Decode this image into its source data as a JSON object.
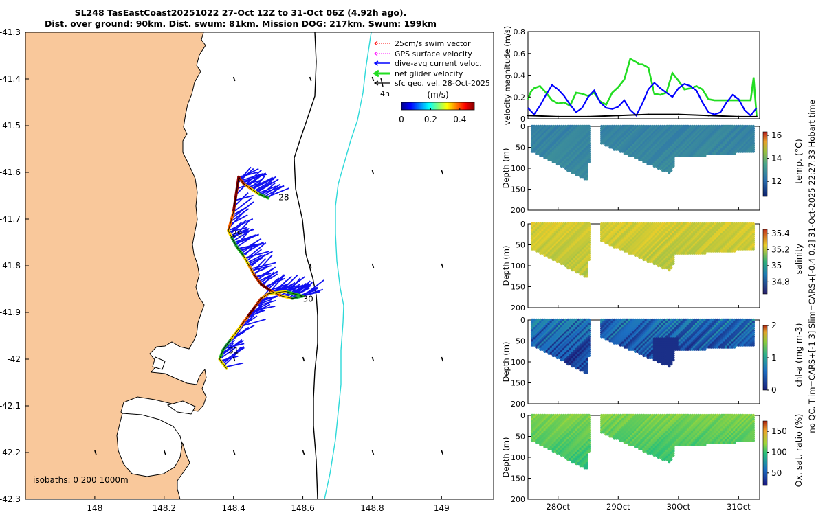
{
  "header": {
    "title_line1": "SL248 TasEastCoast20251022 27-Oct 12Z to 31-Oct 06Z (4.92h ago).",
    "title_line2": "Dist. over ground: 90km. Dist. swum: 81km. Mission DOG: 217km. Swum: 199km"
  },
  "colors": {
    "land": "#f9c89b",
    "isobath_200": "#000000",
    "isobath_1000": "#2ed9d9",
    "swim": "#ff0000",
    "gps": "#ff00ff",
    "current": "#0000ff",
    "net": "#22dd22",
    "geo": "#000000"
  },
  "chart_data": [
    {
      "type": "scatter",
      "name": "map",
      "title": "glider track map",
      "xlim": [
        147.8,
        149.15
      ],
      "ylim": [
        -42.3,
        -41.3
      ],
      "xticks": [
        "148",
        "148.2",
        "148.4",
        "148.6",
        "148.8",
        "149"
      ],
      "yticks": [
        "-41.3",
        "-41.4",
        "-41.5",
        "-41.6",
        "-41.7",
        "-41.8",
        "-41.9",
        "-42",
        "-42.1",
        "-42.2",
        "-42.3"
      ],
      "legend": [
        {
          "label": "25cm/s swim vector",
          "color": "#ff0000"
        },
        {
          "label": "GPS surface velocity",
          "color": "#ff00ff"
        },
        {
          "label": "dive-avg current veloc.",
          "color": "#0000ff"
        },
        {
          "label": "net glider velocity",
          "color": "#22dd22"
        },
        {
          "label": "sfc geo. vel. 28-Oct-2025",
          "color": "#000000"
        }
      ],
      "scale_label": "4h",
      "colorbar": {
        "label": "(m/s)",
        "ticks": [
          "0",
          "0.2",
          "0.4"
        ],
        "range": [
          0,
          0.5
        ]
      },
      "isobaths_label": "isobaths: 0   200  1000m",
      "day_labels": [
        {
          "text": "28",
          "lon": 148.53,
          "lat": -41.652
        },
        {
          "text": "29",
          "lon": 148.395,
          "lat": -41.73
        },
        {
          "text": "30",
          "lon": 148.6,
          "lat": -41.87
        },
        {
          "text": "31",
          "lon": 148.385,
          "lat": -41.98
        }
      ],
      "track": [
        [
          148.5,
          -41.655
        ],
        [
          148.47,
          -41.645
        ],
        [
          148.45,
          -41.635
        ],
        [
          148.43,
          -41.625
        ],
        [
          148.415,
          -41.61
        ],
        [
          148.4,
          -41.685
        ],
        [
          148.385,
          -41.725
        ],
        [
          148.395,
          -41.74
        ],
        [
          148.41,
          -41.76
        ],
        [
          148.43,
          -41.78
        ],
        [
          148.445,
          -41.8
        ],
        [
          148.46,
          -41.82
        ],
        [
          148.48,
          -41.84
        ],
        [
          148.51,
          -41.855
        ],
        [
          148.54,
          -41.865
        ],
        [
          148.57,
          -41.87
        ],
        [
          148.6,
          -41.865
        ],
        [
          148.55,
          -41.855
        ],
        [
          148.5,
          -41.86
        ],
        [
          148.48,
          -41.87
        ],
        [
          148.46,
          -41.89
        ],
        [
          148.44,
          -41.91
        ],
        [
          148.42,
          -41.93
        ],
        [
          148.39,
          -41.96
        ],
        [
          148.37,
          -41.98
        ],
        [
          148.36,
          -42.0
        ],
        [
          148.38,
          -42.02
        ]
      ],
      "geo_arrows": [
        [
          148.8,
          -41.4
        ],
        [
          148.4,
          -41.4
        ],
        [
          148.62,
          -41.4
        ],
        [
          148.8,
          -41.6
        ],
        [
          149.0,
          -41.6
        ],
        [
          149.0,
          -41.8
        ],
        [
          148.8,
          -41.8
        ],
        [
          148.62,
          -41.8
        ],
        [
          149.0,
          -42.0
        ],
        [
          148.8,
          -42.0
        ],
        [
          148.6,
          -42.0
        ],
        [
          148.4,
          -42.0
        ],
        [
          148.0,
          -42.2
        ],
        [
          148.2,
          -42.2
        ],
        [
          148.4,
          -42.2
        ],
        [
          148.6,
          -42.2
        ],
        [
          148.8,
          -42.2
        ],
        [
          149.0,
          -42.2
        ]
      ]
    },
    {
      "type": "line",
      "name": "velocity",
      "ylabel": "velocity magnitude (m/s)",
      "ylim": [
        0,
        0.8
      ],
      "yticks": [
        "0",
        "0.2",
        "0.4",
        "0.6",
        "0.8"
      ],
      "xlim": [
        27.5,
        31.35
      ],
      "series": [
        {
          "name": "net glider velocity",
          "color": "#22dd22",
          "x": [
            27.5,
            27.55,
            27.6,
            27.7,
            27.8,
            27.9,
            28.0,
            28.1,
            28.2,
            28.3,
            28.4,
            28.5,
            28.6,
            28.7,
            28.8,
            28.9,
            29.0,
            29.1,
            29.2,
            29.3,
            29.35,
            29.4,
            29.5,
            29.6,
            29.7,
            29.8,
            29.9,
            30.0,
            30.1,
            30.2,
            30.3,
            30.4,
            30.5,
            30.6,
            30.7,
            30.8,
            30.9,
            31.0,
            31.1,
            31.2,
            31.25,
            31.3
          ],
          "values": [
            0.18,
            0.25,
            0.28,
            0.3,
            0.24,
            0.17,
            0.14,
            0.15,
            0.12,
            0.24,
            0.23,
            0.21,
            0.24,
            0.16,
            0.13,
            0.24,
            0.29,
            0.36,
            0.55,
            0.52,
            0.5,
            0.5,
            0.47,
            0.23,
            0.22,
            0.24,
            0.42,
            0.35,
            0.27,
            0.28,
            0.3,
            0.27,
            0.18,
            0.17,
            0.17,
            0.17,
            0.17,
            0.17,
            0.17,
            0.17,
            0.38,
            0.02
          ]
        },
        {
          "name": "dive-avg current",
          "color": "#0000ff",
          "x": [
            27.5,
            27.6,
            27.7,
            27.8,
            27.9,
            28.0,
            28.1,
            28.2,
            28.3,
            28.4,
            28.5,
            28.6,
            28.7,
            28.8,
            28.9,
            29.0,
            29.1,
            29.2,
            29.3,
            29.4,
            29.5,
            29.6,
            29.7,
            29.8,
            29.9,
            30.0,
            30.1,
            30.2,
            30.3,
            30.4,
            30.5,
            30.6,
            30.7,
            30.8,
            30.9,
            31.0,
            31.1,
            31.2,
            31.3
          ],
          "values": [
            0.1,
            0.04,
            0.12,
            0.22,
            0.31,
            0.27,
            0.21,
            0.13,
            0.06,
            0.1,
            0.2,
            0.26,
            0.15,
            0.1,
            0.09,
            0.11,
            0.17,
            0.08,
            0.03,
            0.14,
            0.27,
            0.33,
            0.28,
            0.24,
            0.2,
            0.28,
            0.32,
            0.3,
            0.26,
            0.15,
            0.06,
            0.04,
            0.06,
            0.15,
            0.22,
            0.18,
            0.08,
            0.03,
            0.1
          ]
        },
        {
          "name": "sfc geo",
          "color": "#000000",
          "x": [
            27.5,
            28.0,
            28.5,
            29.0,
            29.5,
            30.0,
            30.5,
            31.0,
            31.3
          ],
          "values": [
            0.03,
            0.02,
            0.02,
            0.03,
            0.04,
            0.04,
            0.03,
            0.02,
            0.02
          ]
        }
      ]
    },
    {
      "type": "scatter",
      "name": "temperature",
      "ylabel": "Depth (m)",
      "colorbar_label": "temp. (°C)",
      "colorbar_ticks": [
        "12",
        "14",
        "16"
      ],
      "range": [
        10.7,
        16.3
      ],
      "ylim": [
        200,
        0
      ],
      "yticks": [
        "0",
        "50",
        "100",
        "150",
        "200"
      ],
      "surface": 12.6,
      "deep": 12.8
    },
    {
      "type": "scatter",
      "name": "salinity",
      "ylabel": "Depth (m)",
      "colorbar_label": "salinity",
      "colorbar_ticks": [
        "34.8",
        "35",
        "35.2",
        "35.4"
      ],
      "range": [
        34.65,
        35.45
      ],
      "ylim": [
        200,
        0
      ],
      "yticks": [
        "0",
        "50",
        "100",
        "150",
        "200"
      ],
      "surface": 35.23,
      "deep": 35.2
    },
    {
      "type": "scatter",
      "name": "chla",
      "ylabel": "Depth (m)",
      "colorbar_label": "chl-a (mg m-3)",
      "colorbar_ticks": [
        "0",
        "1",
        "2"
      ],
      "range": [
        0,
        2
      ],
      "ylim": [
        200,
        0
      ],
      "yticks": [
        "0",
        "50",
        "100",
        "150",
        "200"
      ],
      "surface": 0.6,
      "deep": 0.25
    },
    {
      "type": "scatter",
      "name": "oxygen",
      "ylabel": "Depth (m)",
      "colorbar_label": "Ox. sat. ratio (%)",
      "colorbar_ticks": [
        "50",
        "100",
        "150"
      ],
      "range": [
        20,
        175
      ],
      "ylim": [
        200,
        0
      ],
      "yticks": [
        "0",
        "50",
        "100",
        "150",
        "200"
      ],
      "surface": 115,
      "deep": 98
    }
  ],
  "time_axis": {
    "ticks": [
      "28Oct",
      "29Oct",
      "30Oct",
      "31Oct"
    ],
    "tick_values": [
      28,
      29,
      30,
      31
    ],
    "xlim": [
      27.5,
      31.35
    ]
  },
  "side_caption": "no QC. Tlim=CARS+[-1 3] Slim=CARS+[-0.4 0.2] 31-Oct-2025 22:27:33 Hobart time"
}
